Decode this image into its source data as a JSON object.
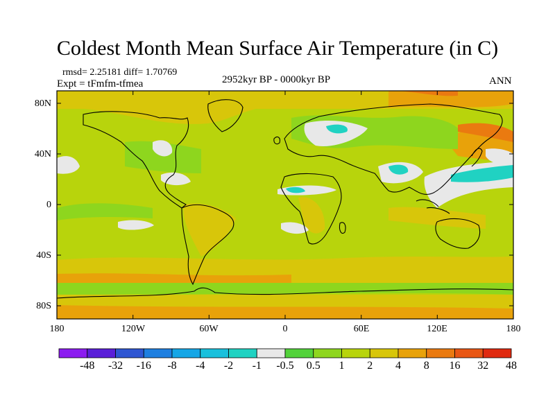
{
  "title": "Coldest Month Mean Surface Air Temperature (in C)",
  "stats": "rmsd= 2.25181 diff= 1.70769",
  "experiment": "Expt = tFmfm-tfmea",
  "subtitle": "2952kyr BP - 0000kyr BP",
  "season": "ANN",
  "axes": {
    "y_ticks": [
      "80N",
      "40N",
      "0",
      "40S",
      "80S"
    ],
    "x_ticks": [
      "180",
      "120W",
      "60W",
      "0",
      "60E",
      "120E",
      "180"
    ]
  },
  "colorbar": {
    "labels": [
      "-48",
      "-32",
      "-16",
      "-8",
      "-4",
      "-2",
      "-1",
      "-0.5",
      "0.5",
      "1",
      "2",
      "4",
      "8",
      "16",
      "32",
      "48"
    ],
    "colors": [
      "#8c1cf0",
      "#5a1fd8",
      "#2f56d2",
      "#1e7fe0",
      "#15a6e6",
      "#19c0dc",
      "#20d2c2",
      "#e8e8e8",
      "#52d23a",
      "#8ed61e",
      "#b8d40c",
      "#d8c60a",
      "#e8a20a",
      "#ea7a10",
      "#e85614",
      "#e02a10"
    ]
  }
}
